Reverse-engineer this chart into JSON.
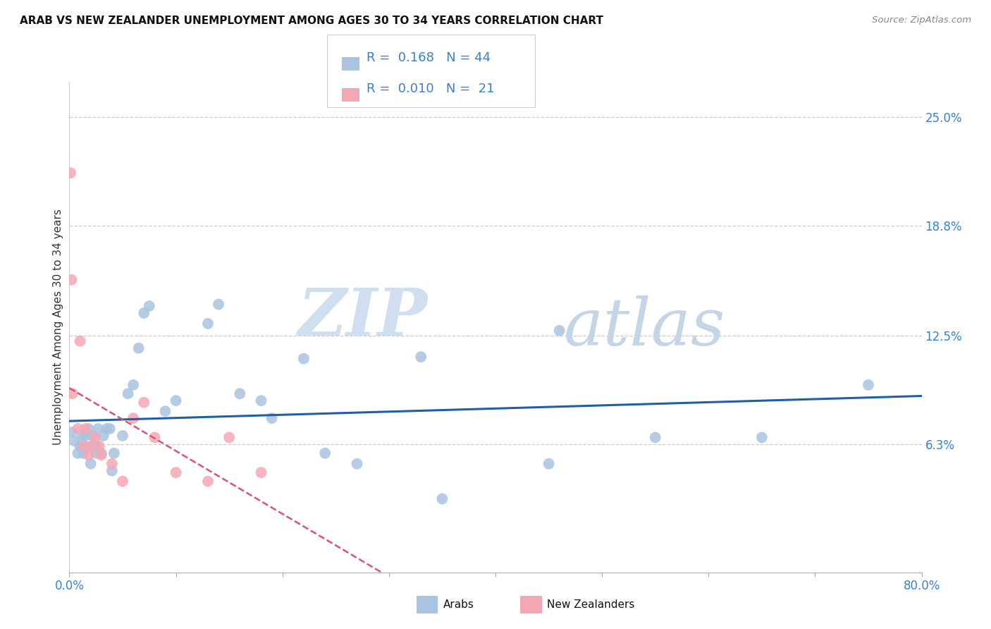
{
  "title": "ARAB VS NEW ZEALANDER UNEMPLOYMENT AMONG AGES 30 TO 34 YEARS CORRELATION CHART",
  "source": "Source: ZipAtlas.com",
  "ylabel": "Unemployment Among Ages 30 to 34 years",
  "xlim": [
    0.0,
    0.8
  ],
  "ylim": [
    -0.01,
    0.27
  ],
  "xticks": [
    0.0,
    0.1,
    0.2,
    0.3,
    0.4,
    0.5,
    0.6,
    0.7,
    0.8
  ],
  "xticklabels": [
    "0.0%",
    "",
    "",
    "",
    "",
    "",
    "",
    "",
    "80.0%"
  ],
  "ytick_labels": [
    "6.3%",
    "12.5%",
    "18.8%",
    "25.0%"
  ],
  "ytick_values": [
    0.063,
    0.125,
    0.188,
    0.25
  ],
  "arab_R": "0.168",
  "arab_N": "44",
  "nz_R": "0.010",
  "nz_N": "21",
  "arab_color": "#a8c4e0",
  "arab_line_color": "#1f5fa6",
  "nz_color": "#f4a7b3",
  "nz_line_color": "#d9546e",
  "watermark_zip": "ZIP",
  "watermark_atlas": "atlas",
  "arab_x": [
    0.002,
    0.005,
    0.008,
    0.01,
    0.012,
    0.013,
    0.015,
    0.015,
    0.018,
    0.02,
    0.022,
    0.022,
    0.025,
    0.025,
    0.027,
    0.03,
    0.032,
    0.035,
    0.038,
    0.04,
    0.042,
    0.05,
    0.055,
    0.06,
    0.065,
    0.07,
    0.075,
    0.09,
    0.1,
    0.13,
    0.14,
    0.16,
    0.18,
    0.19,
    0.22,
    0.24,
    0.27,
    0.33,
    0.35,
    0.45,
    0.46,
    0.55,
    0.65,
    0.75
  ],
  "arab_y": [
    0.07,
    0.065,
    0.058,
    0.062,
    0.068,
    0.058,
    0.062,
    0.068,
    0.072,
    0.052,
    0.062,
    0.068,
    0.058,
    0.062,
    0.072,
    0.058,
    0.068,
    0.072,
    0.072,
    0.048,
    0.058,
    0.068,
    0.092,
    0.097,
    0.118,
    0.138,
    0.142,
    0.082,
    0.088,
    0.132,
    0.143,
    0.092,
    0.088,
    0.078,
    0.112,
    0.058,
    0.052,
    0.113,
    0.032,
    0.052,
    0.128,
    0.067,
    0.067,
    0.097
  ],
  "nz_x": [
    0.001,
    0.002,
    0.003,
    0.008,
    0.01,
    0.013,
    0.015,
    0.018,
    0.02,
    0.024,
    0.028,
    0.03,
    0.04,
    0.05,
    0.06,
    0.07,
    0.08,
    0.1,
    0.13,
    0.15,
    0.18
  ],
  "nz_y": [
    0.218,
    0.157,
    0.092,
    0.072,
    0.122,
    0.062,
    0.072,
    0.057,
    0.062,
    0.067,
    0.062,
    0.057,
    0.052,
    0.042,
    0.078,
    0.087,
    0.067,
    0.047,
    0.042,
    0.067,
    0.047
  ]
}
